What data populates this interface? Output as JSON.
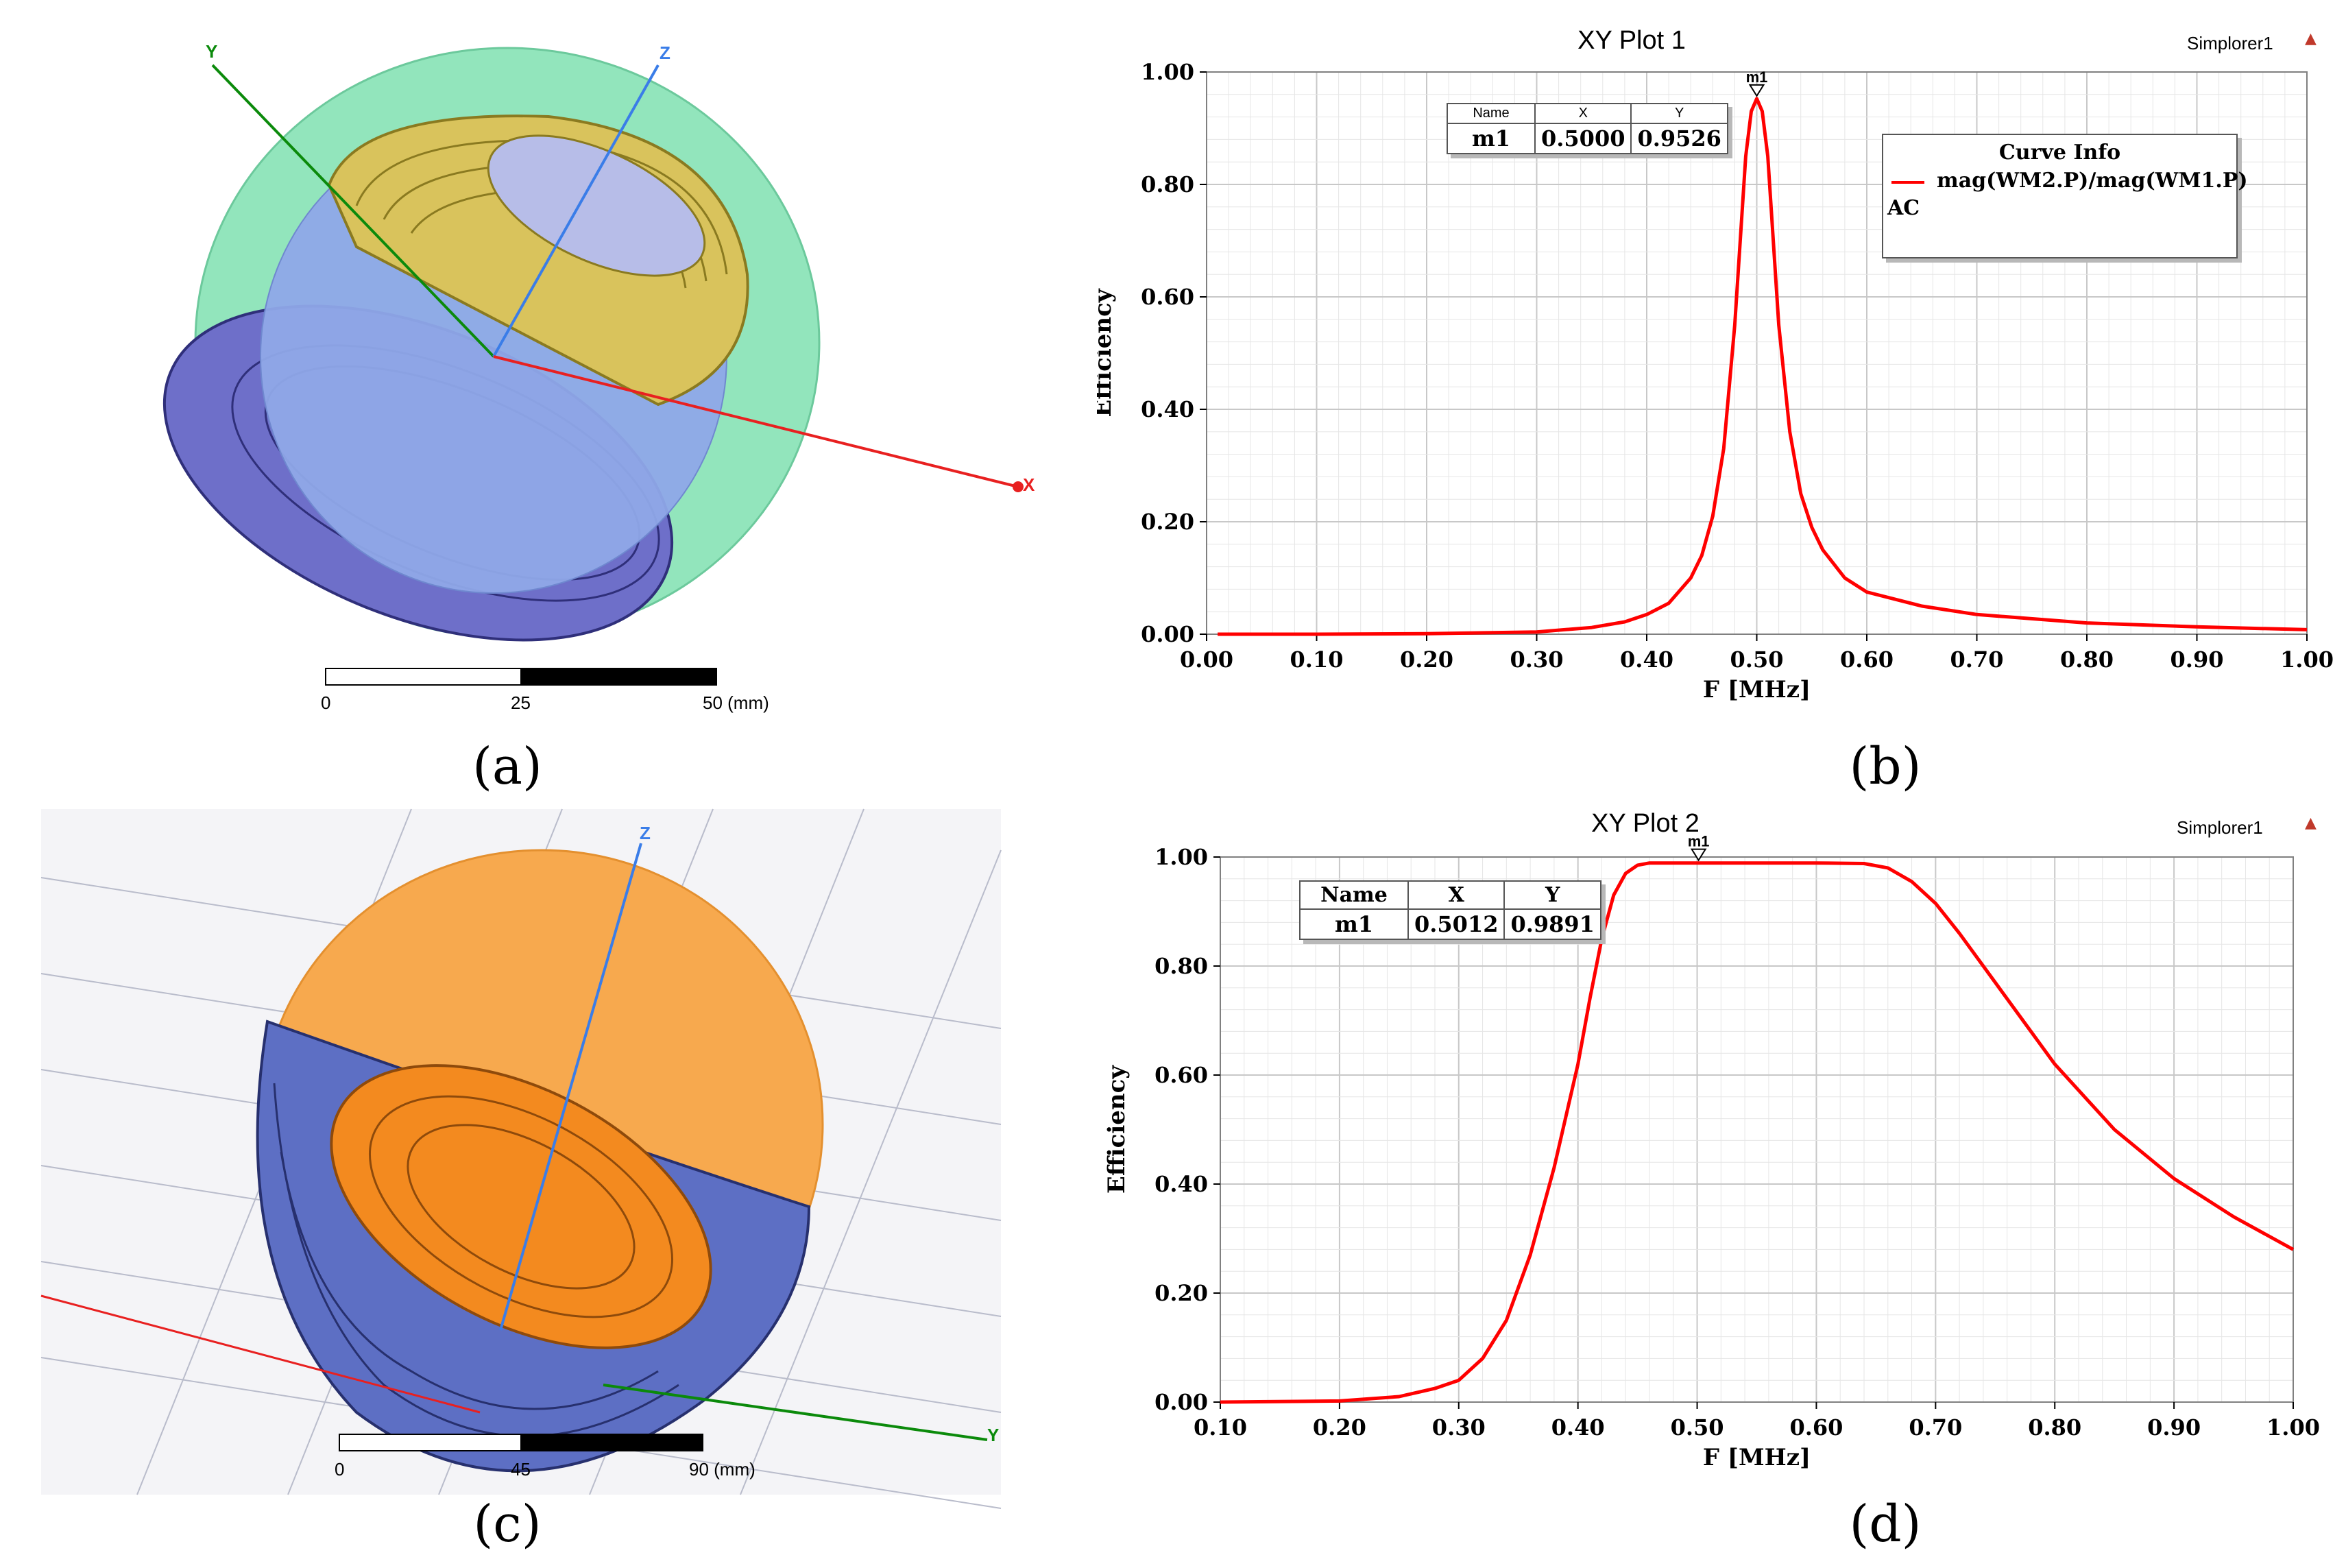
{
  "panels": {
    "a": {
      "caption": "(a)",
      "axes": {
        "y": "Y",
        "z": "Z",
        "x": "X"
      },
      "scale": {
        "labels": [
          "0",
          "25",
          "50 (mm)"
        ]
      }
    },
    "b": {
      "caption": "(b)"
    },
    "c": {
      "caption": "(c)",
      "axes": {
        "z": "Z",
        "y": "Y"
      },
      "scale": {
        "labels": [
          "0",
          "45",
          "90 (mm)"
        ]
      }
    },
    "d": {
      "caption": "(d)"
    }
  },
  "chart_data": [
    {
      "type": "line",
      "id": "b",
      "title": "XY Plot 1",
      "brand": "Simplorer1",
      "xlabel": "F [MHz]",
      "ylabel": "Efficiency",
      "xlim": [
        0.0,
        1.0
      ],
      "ylim": [
        0.0,
        1.0
      ],
      "xticks": [
        "0.00",
        "0.10",
        "0.20",
        "0.30",
        "0.40",
        "0.50",
        "0.60",
        "0.70",
        "0.80",
        "0.90",
        "1.00"
      ],
      "yticks": [
        "0.00",
        "0.20",
        "0.40",
        "0.60",
        "0.80",
        "1.00"
      ],
      "grid": true,
      "legend": {
        "title": "Curve Info",
        "entries": [
          "mag(WM2.P)/mag(WM1.P)"
        ],
        "sub": "AC"
      },
      "marker": {
        "label": "m1",
        "headers": [
          "Name",
          "X",
          "Y"
        ],
        "row": [
          "m1",
          "0.5000",
          "0.9526"
        ],
        "x": 0.5,
        "y": 0.9526
      },
      "series": [
        {
          "name": "mag(WM2.P)/mag(WM1.P)",
          "color": "#ff0000",
          "x": [
            0.01,
            0.1,
            0.2,
            0.3,
            0.35,
            0.38,
            0.4,
            0.42,
            0.44,
            0.45,
            0.46,
            0.47,
            0.48,
            0.485,
            0.49,
            0.495,
            0.5,
            0.505,
            0.51,
            0.515,
            0.52,
            0.53,
            0.54,
            0.55,
            0.56,
            0.58,
            0.6,
            0.65,
            0.7,
            0.8,
            0.9,
            1.0
          ],
          "y": [
            0.0,
            0.0,
            0.001,
            0.004,
            0.012,
            0.022,
            0.035,
            0.055,
            0.1,
            0.14,
            0.21,
            0.33,
            0.55,
            0.7,
            0.85,
            0.93,
            0.9526,
            0.93,
            0.85,
            0.7,
            0.55,
            0.36,
            0.25,
            0.19,
            0.15,
            0.1,
            0.075,
            0.05,
            0.035,
            0.02,
            0.013,
            0.008
          ]
        }
      ]
    },
    {
      "type": "line",
      "id": "d",
      "title": "XY Plot 2",
      "brand": "Simplorer1",
      "xlabel": "F [MHz]",
      "ylabel": "Efficiency",
      "xlim": [
        0.1,
        1.0
      ],
      "ylim": [
        0.0,
        1.0
      ],
      "xticks": [
        "0.10",
        "0.20",
        "0.30",
        "0.40",
        "0.50",
        "0.60",
        "0.70",
        "0.80",
        "0.90",
        "1.00"
      ],
      "yticks": [
        "0.00",
        "0.20",
        "0.40",
        "0.60",
        "0.80",
        "1.00"
      ],
      "grid": true,
      "marker": {
        "label": "m1",
        "headers": [
          "Name",
          "X",
          "Y"
        ],
        "row": [
          "m1",
          "0.5012",
          "0.9891"
        ],
        "x": 0.5012,
        "y": 0.9891
      },
      "series": [
        {
          "name": "Efficiency",
          "color": "#ff0000",
          "x": [
            0.1,
            0.2,
            0.25,
            0.28,
            0.3,
            0.32,
            0.34,
            0.36,
            0.38,
            0.4,
            0.41,
            0.42,
            0.43,
            0.44,
            0.45,
            0.46,
            0.5,
            0.55,
            0.6,
            0.64,
            0.66,
            0.68,
            0.7,
            0.72,
            0.75,
            0.78,
            0.8,
            0.85,
            0.9,
            0.95,
            1.0
          ],
          "y": [
            0.0,
            0.002,
            0.01,
            0.025,
            0.04,
            0.08,
            0.15,
            0.27,
            0.43,
            0.62,
            0.74,
            0.85,
            0.93,
            0.97,
            0.985,
            0.989,
            0.989,
            0.989,
            0.989,
            0.988,
            0.98,
            0.955,
            0.915,
            0.86,
            0.77,
            0.68,
            0.62,
            0.5,
            0.41,
            0.34,
            0.28
          ]
        }
      ]
    }
  ]
}
